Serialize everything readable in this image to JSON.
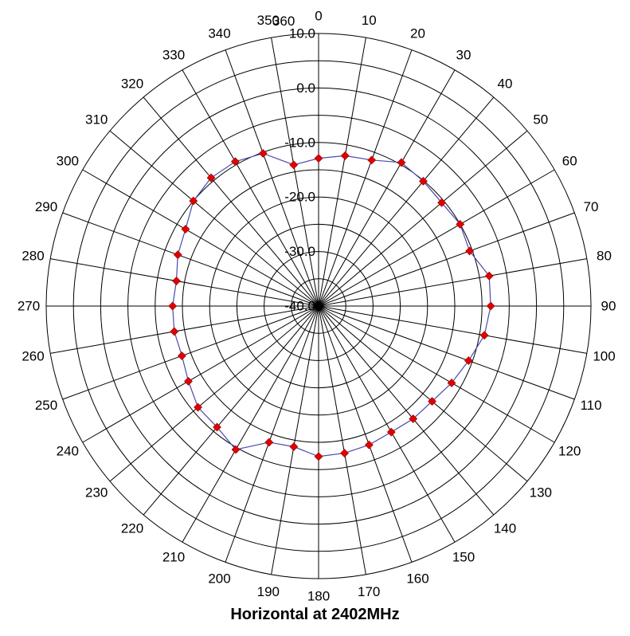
{
  "chart_data": {
    "type": "polar-line",
    "title": "Horizontal at 2402MHz",
    "angle_unit": "degrees",
    "angle_zero": "top",
    "angle_direction": "clockwise",
    "angle_step": 10,
    "angle_ticks": [
      "0",
      "10",
      "20",
      "30",
      "40",
      "50",
      "60",
      "70",
      "80",
      "90",
      "100",
      "110",
      "120",
      "130",
      "140",
      "150",
      "160",
      "170",
      "180",
      "190",
      "200",
      "210",
      "220",
      "230",
      "240",
      "250",
      "260",
      "270",
      "280",
      "290",
      "300",
      "310",
      "320",
      "330",
      "340",
      "350",
      "360"
    ],
    "radial_range": [
      -40,
      10
    ],
    "radial_ticks": [
      -40,
      -30,
      -20,
      -10,
      0,
      10
    ],
    "radial_tick_labels": [
      "-40.0",
      "-30.0",
      "-20.0",
      "-10.0",
      "0.0",
      "10.0"
    ],
    "grid": true,
    "series": [
      {
        "color": "#4a4ab0",
        "marker_color": "#e00000",
        "marker": "diamond",
        "angles": [
          0,
          10,
          20,
          30,
          40,
          50,
          60,
          70,
          80,
          90,
          100,
          110,
          120,
          130,
          140,
          150,
          160,
          170,
          180,
          190,
          200,
          210,
          220,
          230,
          240,
          250,
          260,
          270,
          280,
          290,
          300,
          310,
          320,
          330,
          340,
          350
        ],
        "values": [
          -12.9,
          -12.0,
          -11.5,
          -9.6,
          -10.1,
          -10.5,
          -10.0,
          -10.5,
          -8.2,
          -8.4,
          -9.1,
          -10.7,
          -11.8,
          -12.8,
          -13.0,
          -13.3,
          -12.9,
          -12.6,
          -12.4,
          -13.8,
          -13.4,
          -9.6,
          -11.0,
          -11.1,
          -12.4,
          -13.3,
          -13.1,
          -13.2,
          -13.5,
          -12.5,
          -11.8,
          -10.0,
          -9.3,
          -9.4,
          -10.2,
          -13.7
        ]
      }
    ]
  }
}
